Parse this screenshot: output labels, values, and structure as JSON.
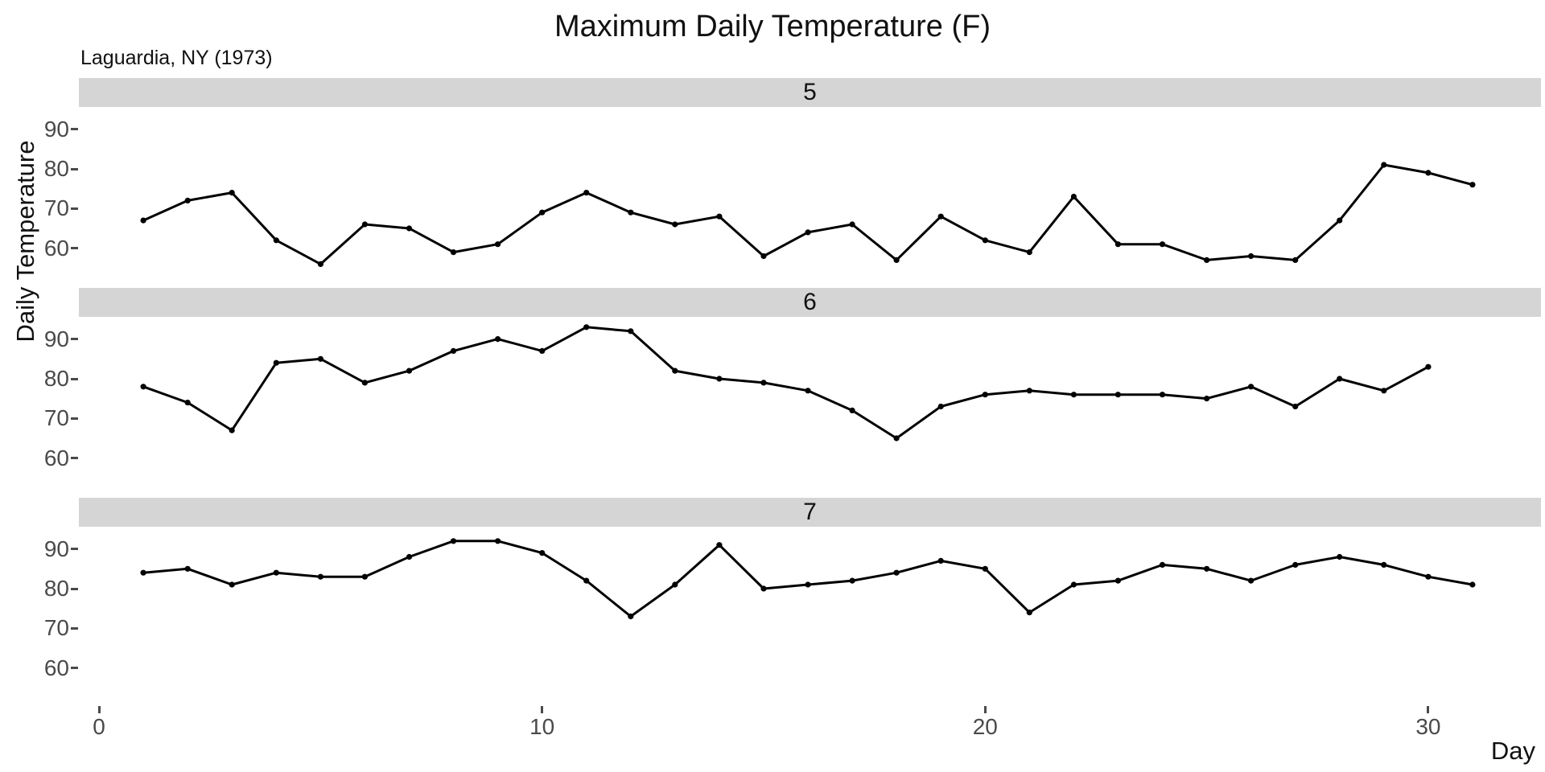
{
  "title": "Maximum Daily Temperature (F)",
  "subtitle": "Laguardia, NY (1973)",
  "x_axis": {
    "label": "Day",
    "ticks": [
      0,
      10,
      20,
      30
    ]
  },
  "y_axis": {
    "label": "Daily Temperature",
    "ticks": [
      90,
      80,
      70,
      60
    ]
  },
  "chart_data": {
    "type": "line",
    "title": "Maximum Daily Temperature (F)",
    "subtitle": "Laguardia, NY (1973)",
    "xlabel": "Day",
    "ylabel": "Daily Temperature",
    "facet_variable": "Month",
    "x_start_day": 1,
    "xlim": [
      -0.5,
      32.5
    ],
    "ylim": [
      50.6,
      95.6
    ],
    "x_ticks": [
      0,
      10,
      20,
      30
    ],
    "y_ticks": [
      60,
      70,
      80,
      90
    ],
    "grid": false,
    "legend": false,
    "line_color": "#000000",
    "point_color": "#000000",
    "strip_color": "#d5d5d5",
    "tick_label_color": "#4a4a4a",
    "facets": [
      {
        "label": "5",
        "days": [
          1,
          2,
          3,
          4,
          5,
          6,
          7,
          8,
          9,
          10,
          11,
          12,
          13,
          14,
          15,
          16,
          17,
          18,
          19,
          20,
          21,
          22,
          23,
          24,
          25,
          26,
          27,
          28,
          29,
          30,
          31
        ],
        "values": [
          67,
          72,
          74,
          62,
          56,
          66,
          65,
          59,
          61,
          69,
          74,
          69,
          66,
          68,
          58,
          64,
          66,
          57,
          68,
          62,
          59,
          73,
          61,
          61,
          57,
          58,
          57,
          67,
          81,
          79,
          76
        ]
      },
      {
        "label": "6",
        "days": [
          1,
          2,
          3,
          4,
          5,
          6,
          7,
          8,
          9,
          10,
          11,
          12,
          13,
          14,
          15,
          16,
          17,
          18,
          19,
          20,
          21,
          22,
          23,
          24,
          25,
          26,
          27,
          28,
          29,
          30
        ],
        "values": [
          78,
          74,
          67,
          84,
          85,
          79,
          82,
          87,
          90,
          87,
          93,
          92,
          82,
          80,
          79,
          77,
          72,
          65,
          73,
          76,
          77,
          76,
          76,
          76,
          75,
          78,
          73,
          80,
          77,
          83
        ]
      },
      {
        "label": "7",
        "days": [
          1,
          2,
          3,
          4,
          5,
          6,
          7,
          8,
          9,
          10,
          11,
          12,
          13,
          14,
          15,
          16,
          17,
          18,
          19,
          20,
          21,
          22,
          23,
          24,
          25,
          26,
          27,
          28,
          29,
          30,
          31
        ],
        "values": [
          84,
          85,
          81,
          84,
          83,
          83,
          88,
          92,
          92,
          89,
          82,
          73,
          81,
          91,
          80,
          81,
          82,
          84,
          87,
          85,
          74,
          81,
          82,
          86,
          85,
          82,
          86,
          88,
          86,
          83,
          81
        ]
      }
    ]
  }
}
